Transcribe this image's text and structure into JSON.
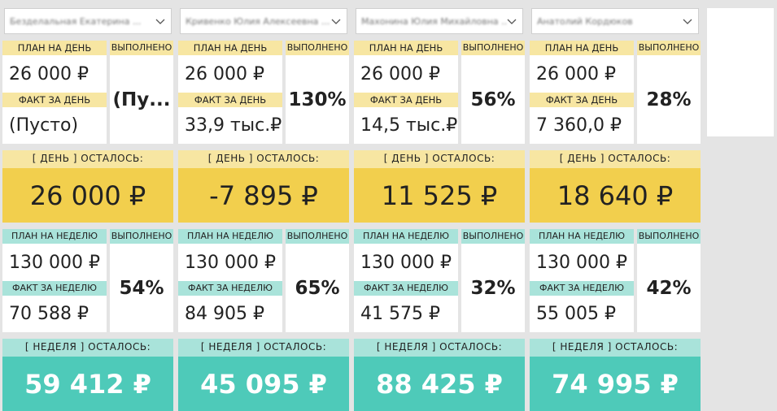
{
  "labels": {
    "plan_day": "ПЛАН НА ДЕНЬ",
    "fact_day": "ФАКТ ЗА ДЕНЬ",
    "done": "ВЫПОЛНЕНО",
    "day_left": "[ ДЕНЬ ] ОСТАЛОСЬ:",
    "plan_week": "ПЛАН НА НЕДЕЛЮ",
    "fact_week": "ФАКТ ЗА НЕДЕЛЮ",
    "week_left": "[ НЕДЕЛЯ ] ОСТАЛОСЬ:"
  },
  "columns": [
    {
      "person": "Безделальная Екатерина ...",
      "plan_day": "26 000 ₽",
      "fact_day": "(Пусто)",
      "done_day": "(Пу...",
      "day_left": "26 000 ₽",
      "plan_week": "130 000 ₽",
      "fact_week": "70 588 ₽",
      "done_week": "54%",
      "week_left": "59 412 ₽"
    },
    {
      "person": "Кривенко Юлия Алексеевна ...",
      "plan_day": "26 000 ₽",
      "fact_day": "33,9 тыс.₽",
      "done_day": "130%",
      "day_left": "-7 895 ₽",
      "plan_week": "130 000 ₽",
      "fact_week": "84 905 ₽",
      "done_week": "65%",
      "week_left": "45 095 ₽"
    },
    {
      "person": "Махонина Юлия Михайловна ...",
      "plan_day": "26 000 ₽",
      "fact_day": "14,5 тыс.₽",
      "done_day": "56%",
      "day_left": "11 525 ₽",
      "plan_week": "130 000 ₽",
      "fact_week": "41 575 ₽",
      "done_week": "32%",
      "week_left": "88 425 ₽"
    },
    {
      "person": "Анатолий Кордюков",
      "plan_day": "26 000 ₽",
      "fact_day": "7 360,0 ₽",
      "done_day": "28%",
      "day_left": "18 640 ₽",
      "plan_week": "130 000 ₽",
      "fact_week": "55 005 ₽",
      "done_week": "42%",
      "week_left": "74 995 ₽"
    }
  ]
}
